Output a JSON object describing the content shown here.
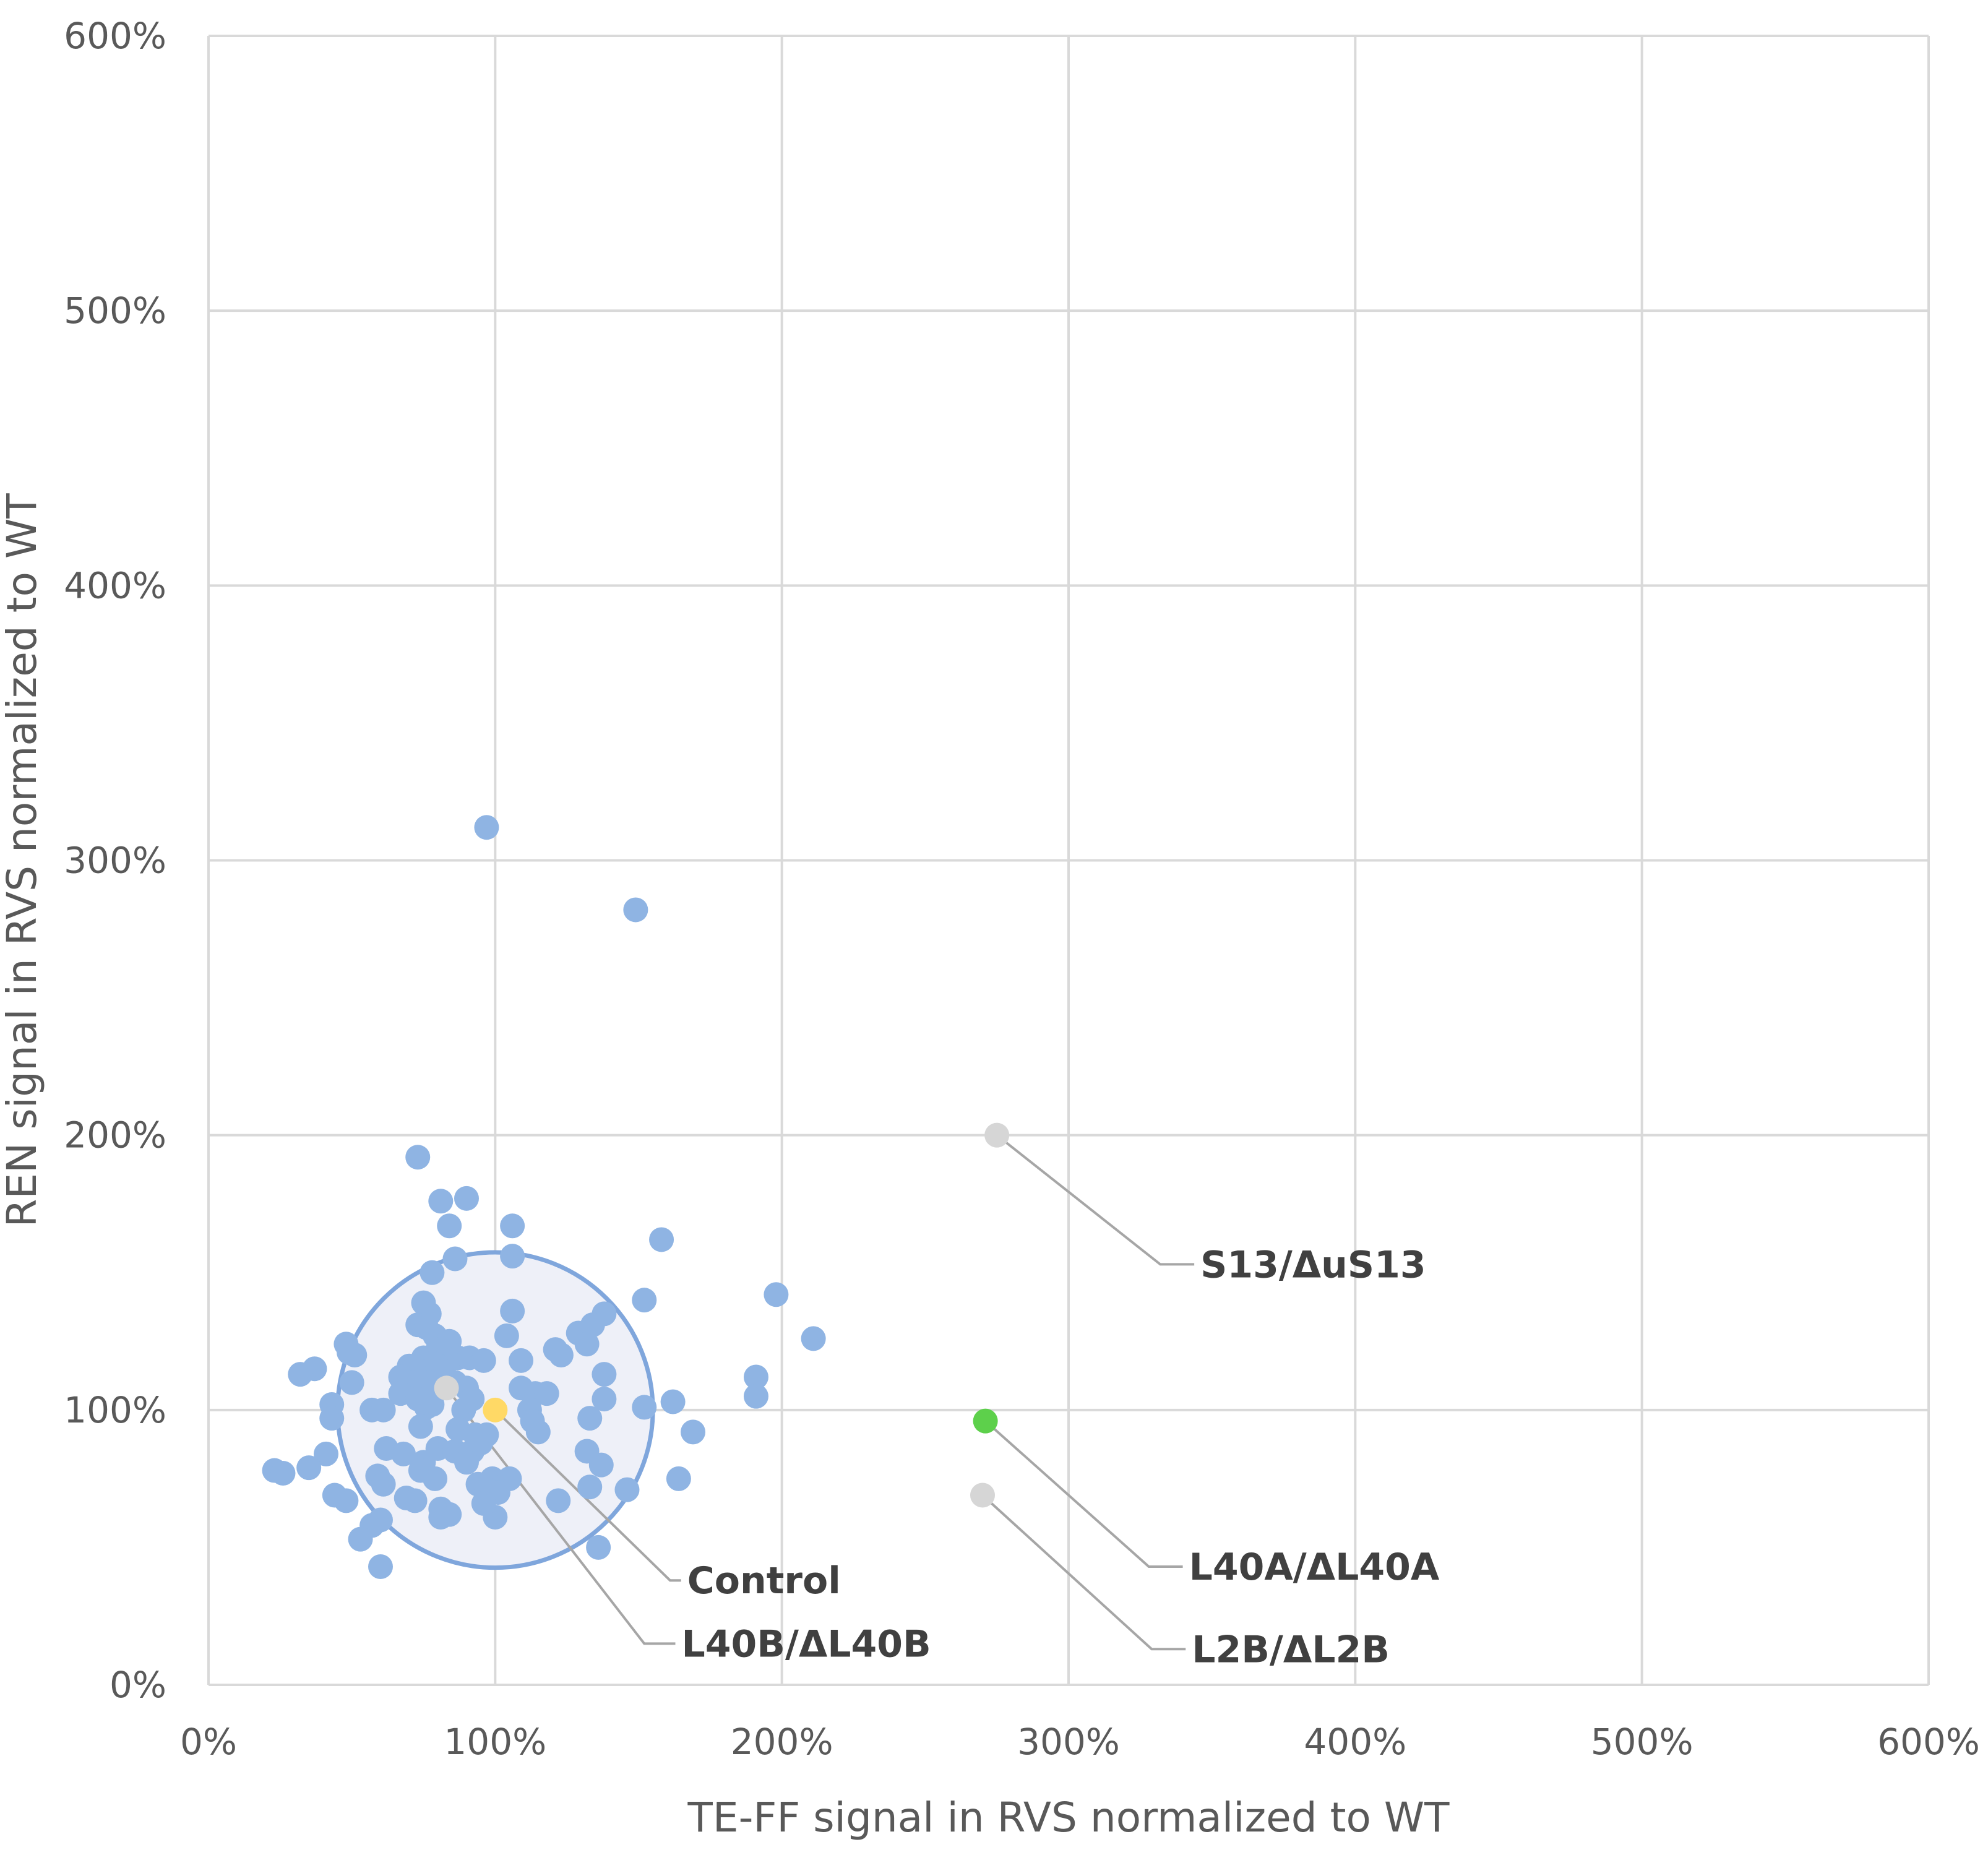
{
  "chart_data": {
    "type": "scatter",
    "title": "",
    "xlabel": "TE-FF signal in RVS normalized to WT",
    "ylabel": "REN signal in RVS normalized to WT",
    "xlim": [
      0,
      600
    ],
    "ylim": [
      0,
      600
    ],
    "x_ticks": [
      0,
      100,
      200,
      300,
      400,
      500,
      600
    ],
    "y_ticks": [
      0,
      100,
      200,
      300,
      400,
      500,
      600
    ],
    "x_tick_labels": [
      "0%",
      "100%",
      "200%",
      "300%",
      "400%",
      "500%",
      "600%"
    ],
    "y_tick_labels": [
      "0%",
      "100%",
      "200%",
      "300%",
      "400%",
      "500%",
      "600%"
    ],
    "grid": true,
    "legend": "none",
    "colors": {
      "mutant": "#8fb4e3",
      "control": "#ffd966",
      "highlight": "#5dd04b",
      "outlier_gray": "#d6d6d6",
      "circle_stroke": "#7fa6dc",
      "circle_fill": "#eef0f8"
    },
    "reference_circle": {
      "center": [
        100,
        100
      ],
      "radius": 55
    },
    "series": [
      {
        "name": "Mutant strains",
        "color": "#8fb4e3",
        "points": [
          [
            97,
            312
          ],
          [
            149,
            282
          ],
          [
            73,
            192
          ],
          [
            81,
            176
          ],
          [
            90,
            177
          ],
          [
            84,
            167
          ],
          [
            106,
            167
          ],
          [
            158,
            162
          ],
          [
            106,
            156
          ],
          [
            86,
            155
          ],
          [
            78,
            150
          ],
          [
            152,
            140
          ],
          [
            198,
            142
          ],
          [
            211,
            126
          ],
          [
            75,
            139
          ],
          [
            77,
            135
          ],
          [
            106,
            136
          ],
          [
            138,
            135
          ],
          [
            134,
            131
          ],
          [
            129,
            128
          ],
          [
            104,
            127
          ],
          [
            132,
            124
          ],
          [
            73,
            131
          ],
          [
            76,
            130
          ],
          [
            79,
            127
          ],
          [
            84,
            125
          ],
          [
            80,
            122
          ],
          [
            123,
            120
          ],
          [
            121,
            122
          ],
          [
            48,
            124
          ],
          [
            51,
            120
          ],
          [
            49,
            121
          ],
          [
            75,
            119
          ],
          [
            78,
            117
          ],
          [
            87,
            119
          ],
          [
            91,
            119
          ],
          [
            96,
            118
          ],
          [
            109,
            118
          ],
          [
            70,
            116
          ],
          [
            74,
            114
          ],
          [
            80,
            116
          ],
          [
            82,
            114
          ],
          [
            37,
            115
          ],
          [
            32,
            113
          ],
          [
            138,
            113
          ],
          [
            191,
            112
          ],
          [
            67,
            112
          ],
          [
            71,
            110
          ],
          [
            77,
            110
          ],
          [
            86,
            110
          ],
          [
            90,
            108
          ],
          [
            50,
            110
          ],
          [
            109,
            108
          ],
          [
            114,
            106
          ],
          [
            118,
            106
          ],
          [
            191,
            105
          ],
          [
            67,
            106
          ],
          [
            73,
            104
          ],
          [
            78,
            102
          ],
          [
            92,
            104
          ],
          [
            43,
            102
          ],
          [
            138,
            104
          ],
          [
            152,
            101
          ],
          [
            162,
            103
          ],
          [
            57,
            100
          ],
          [
            61,
            100
          ],
          [
            76,
            101
          ],
          [
            89,
            100
          ],
          [
            112,
            100
          ],
          [
            43,
            97
          ],
          [
            133,
            97
          ],
          [
            113,
            96
          ],
          [
            74,
            94
          ],
          [
            87,
            93
          ],
          [
            93,
            91
          ],
          [
            97,
            91
          ],
          [
            115,
            92
          ],
          [
            169,
            92
          ],
          [
            62,
            86
          ],
          [
            68,
            84
          ],
          [
            80,
            86
          ],
          [
            86,
            85
          ],
          [
            92,
            85
          ],
          [
            95,
            88
          ],
          [
            41,
            84
          ],
          [
            132,
            85
          ],
          [
            75,
            81
          ],
          [
            90,
            81
          ],
          [
            137,
            80
          ],
          [
            23,
            78
          ],
          [
            35,
            79
          ],
          [
            26,
            77
          ],
          [
            59,
            76
          ],
          [
            74,
            78
          ],
          [
            79,
            75
          ],
          [
            94,
            73
          ],
          [
            99,
            75
          ],
          [
            105,
            75
          ],
          [
            164,
            75
          ],
          [
            61,
            73
          ],
          [
            97,
            71
          ],
          [
            101,
            70
          ],
          [
            133,
            72
          ],
          [
            146,
            71
          ],
          [
            44,
            69
          ],
          [
            48,
            67
          ],
          [
            69,
            68
          ],
          [
            72,
            67
          ],
          [
            81,
            64
          ],
          [
            84,
            62
          ],
          [
            81,
            61
          ],
          [
            100,
            61
          ],
          [
            122,
            67
          ],
          [
            96,
            66
          ],
          [
            60,
            60
          ],
          [
            57,
            58
          ],
          [
            53,
            53
          ],
          [
            136,
            50
          ],
          [
            60,
            43
          ]
        ]
      },
      {
        "name": "Control",
        "color": "#ffd966",
        "points": [
          [
            100,
            100
          ]
        ]
      },
      {
        "name": "L40B/ΔL40B",
        "color": "#d6d6d6",
        "points": [
          [
            83,
            108
          ]
        ]
      },
      {
        "name": "S13/ΔuS13",
        "color": "#d6d6d6",
        "points": [
          [
            275,
            200
          ]
        ]
      },
      {
        "name": "L40A/ΔL40A",
        "color": "#5dd04b",
        "points": [
          [
            271,
            96
          ]
        ]
      },
      {
        "name": "L2B/ΔL2B",
        "color": "#d6d6d6",
        "points": [
          [
            270,
            69
          ]
        ]
      }
    ],
    "annotations": [
      {
        "text": "S13/ΔuS13",
        "point": [
          275,
          200
        ],
        "elbow": [
          332,
          153
        ],
        "label": [
          346,
          153
        ]
      },
      {
        "text": "Control",
        "point": [
          100,
          100
        ],
        "elbow": [
          161,
          38
        ],
        "label": [
          167,
          38
        ]
      },
      {
        "text": "L40B/ΔL40B",
        "point": [
          83,
          108
        ],
        "elbow": [
          152,
          15
        ],
        "label": [
          165,
          15
        ]
      },
      {
        "text": "L40A/ΔL40A",
        "point": [
          271,
          96
        ],
        "elbow": [
          328,
          43
        ],
        "label": [
          342,
          43
        ]
      },
      {
        "text": "L2B/ΔL2B",
        "point": [
          270,
          69
        ],
        "elbow": [
          329,
          13
        ],
        "label": [
          343,
          13
        ]
      }
    ]
  }
}
